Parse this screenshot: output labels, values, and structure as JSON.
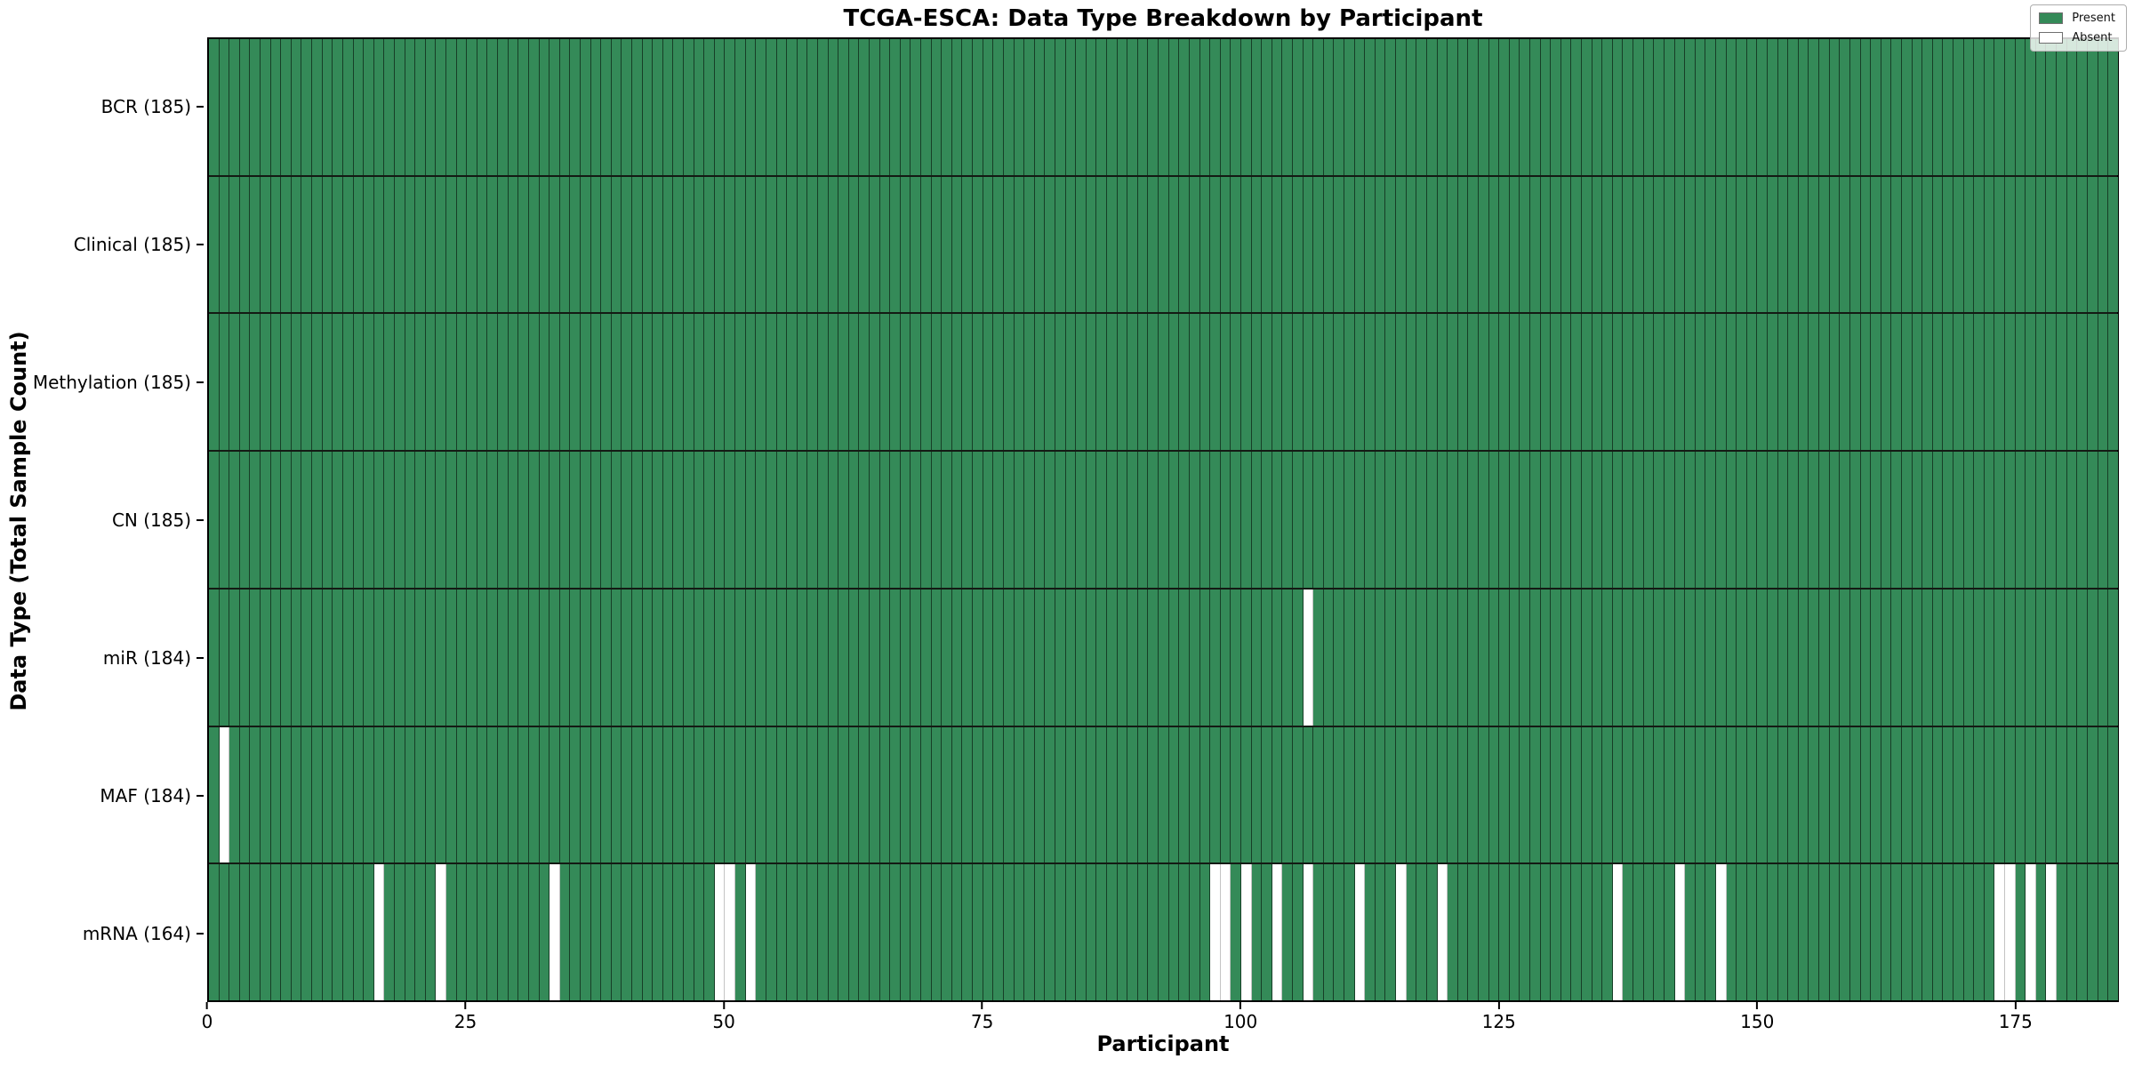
{
  "chart_data": {
    "type": "heatmap",
    "title": "TCGA-ESCA: Data Type Breakdown by Participant",
    "xlabel": "Participant",
    "ylabel": "Data Type (Total Sample Count)",
    "n_participants": 185,
    "x_ticks": [
      0,
      25,
      50,
      75,
      100,
      125,
      150,
      175
    ],
    "legend": {
      "present_label": "Present",
      "absent_label": "Absent",
      "position": "upper right"
    },
    "colors": {
      "present": "#348a58",
      "absent": "#ffffff"
    },
    "grid": "cell-edges",
    "rows": [
      {
        "label": "BCR (185)",
        "data_type": "BCR",
        "present_count": 185,
        "absent_participants": []
      },
      {
        "label": "Clinical (185)",
        "data_type": "Clinical",
        "present_count": 185,
        "absent_participants": []
      },
      {
        "label": "Methylation (185)",
        "data_type": "Methylation",
        "present_count": 185,
        "absent_participants": []
      },
      {
        "label": "CN (185)",
        "data_type": "CN",
        "present_count": 185,
        "absent_participants": []
      },
      {
        "label": "miR (184)",
        "data_type": "miR",
        "present_count": 184,
        "absent_participants": [
          106
        ]
      },
      {
        "label": "MAF (184)",
        "data_type": "MAF",
        "present_count": 184,
        "absent_participants": [
          1
        ]
      },
      {
        "label": "mRNA (164)",
        "data_type": "mRNA",
        "present_count": 164,
        "absent_participants": [
          16,
          22,
          33,
          49,
          50,
          52,
          97,
          98,
          100,
          103,
          106,
          111,
          115,
          119,
          136,
          142,
          146,
          173,
          174,
          176,
          178
        ]
      }
    ]
  }
}
